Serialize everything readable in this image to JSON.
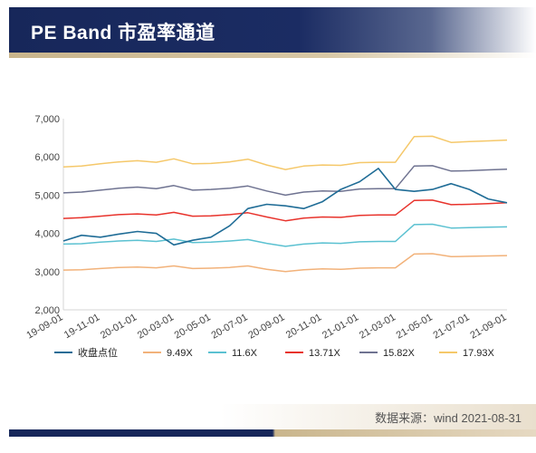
{
  "header": {
    "title": "PE Band 市盈率通道"
  },
  "footer": {
    "source": "数据来源：wind 2021-08-31"
  },
  "chart_data": {
    "type": "line",
    "title": "PE Band 市盈率通道",
    "xlabel": "",
    "ylabel": "",
    "ylim": [
      2000,
      7000
    ],
    "yticks": [
      "7,000",
      "6,000",
      "5,000",
      "4,000",
      "3,000",
      "2,000"
    ],
    "ytick_values": [
      7000,
      6000,
      5000,
      4000,
      3000,
      2000
    ],
    "xticks": [
      "19-09-01",
      "19-11-01",
      "20-01-01",
      "20-03-01",
      "20-05-01",
      "20-07-01",
      "20-09-01",
      "20-11-01",
      "21-01-01",
      "21-03-01",
      "21-05-01",
      "21-07-01",
      "21-09-01"
    ],
    "x_range": [
      "2019-09-01",
      "2021-09-01"
    ],
    "grid": false,
    "legend_position": "bottom",
    "x": [
      "2019-09-01",
      "2019-10-01",
      "2019-11-01",
      "2019-12-01",
      "2020-01-01",
      "2020-02-01",
      "2020-03-01",
      "2020-04-01",
      "2020-05-01",
      "2020-06-01",
      "2020-07-01",
      "2020-08-01",
      "2020-09-01",
      "2020-10-01",
      "2020-11-01",
      "2020-12-01",
      "2021-01-01",
      "2021-02-01",
      "2021-03-01",
      "2021-04-01",
      "2021-05-01",
      "2021-06-01",
      "2021-07-01",
      "2021-08-01",
      "2021-09-01"
    ],
    "series": [
      {
        "name": "收盘点位",
        "color": "#1f6c96",
        "values": [
          3800,
          3950,
          3900,
          3980,
          4050,
          4000,
          3700,
          3820,
          3900,
          4200,
          4650,
          4760,
          4720,
          4650,
          4830,
          5150,
          5350,
          5700,
          5150,
          5100,
          5150,
          5300,
          5150,
          4900,
          4800
        ]
      },
      {
        "name": "9.49X",
        "color": "#f2b27a",
        "values": [
          3040,
          3050,
          3080,
          3110,
          3120,
          3100,
          3150,
          3080,
          3090,
          3110,
          3150,
          3060,
          3000,
          3050,
          3070,
          3060,
          3090,
          3100,
          3100,
          3460,
          3470,
          3390,
          3400,
          3410,
          3420
        ]
      },
      {
        "name": "11.6X",
        "color": "#5bc1d1",
        "values": [
          3720,
          3730,
          3770,
          3800,
          3820,
          3790,
          3850,
          3760,
          3770,
          3800,
          3840,
          3740,
          3660,
          3720,
          3750,
          3740,
          3780,
          3790,
          3790,
          4230,
          4240,
          4140,
          4150,
          4160,
          4170
        ]
      },
      {
        "name": "13.71X",
        "color": "#e8332c",
        "values": [
          4390,
          4410,
          4450,
          4490,
          4510,
          4480,
          4550,
          4450,
          4460,
          4490,
          4540,
          4430,
          4330,
          4400,
          4430,
          4420,
          4470,
          4480,
          4480,
          4860,
          4870,
          4750,
          4760,
          4780,
          4800
        ]
      },
      {
        "name": "15.82X",
        "color": "#6f7391",
        "values": [
          5060,
          5080,
          5130,
          5180,
          5210,
          5170,
          5250,
          5130,
          5150,
          5180,
          5240,
          5110,
          5000,
          5080,
          5110,
          5100,
          5160,
          5170,
          5170,
          5760,
          5770,
          5630,
          5640,
          5660,
          5680
        ]
      },
      {
        "name": "17.93X",
        "color": "#f5c86a",
        "values": [
          5740,
          5760,
          5820,
          5870,
          5900,
          5860,
          5950,
          5820,
          5830,
          5870,
          5940,
          5790,
          5670,
          5760,
          5790,
          5780,
          5850,
          5860,
          5860,
          6530,
          6540,
          6380,
          6400,
          6420,
          6440
        ]
      }
    ]
  }
}
